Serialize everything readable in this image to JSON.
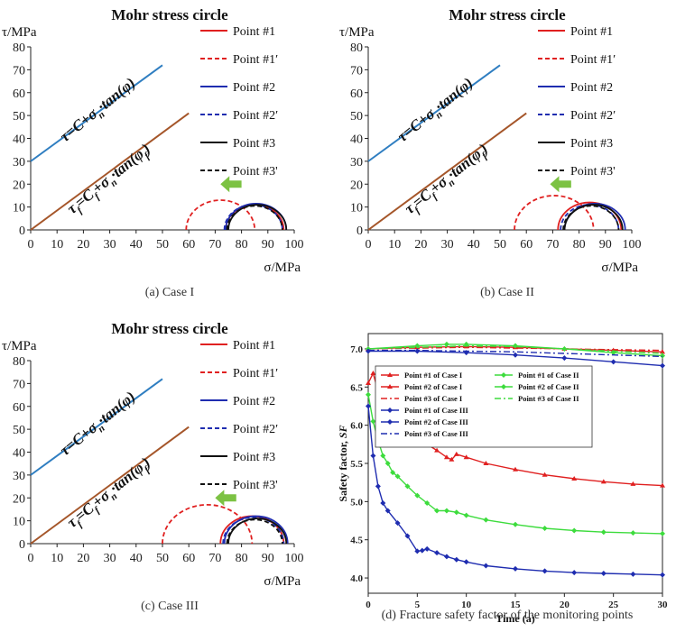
{
  "chart_data": [
    {
      "id": "a",
      "type": "line",
      "title": "Mohr stress circle",
      "caption": "(a) Case I",
      "xlabel": "σ/MPa",
      "ylabel": "τ/MPa",
      "xlim": [
        0,
        100
      ],
      "ylim": [
        0,
        80
      ],
      "xticks": [
        0,
        10,
        20,
        30,
        40,
        50,
        60,
        70,
        80,
        90,
        100
      ],
      "yticks": [
        0,
        10,
        20,
        30,
        40,
        50,
        60,
        70,
        80
      ],
      "lines": [
        {
          "name": "τ=C+σn·tan(φ)",
          "x": [
            0,
            50
          ],
          "y": [
            30,
            72
          ],
          "color": "#2f7ec1"
        },
        {
          "name": "τf=Cf+σn·tan(φf)",
          "x": [
            0,
            60
          ],
          "y": [
            0,
            51
          ],
          "color": "#a5562a"
        }
      ],
      "line_labels": [
        "τ=C+σ",
        "n",
        "·tan(φ)",
        "τ",
        "f",
        "=C",
        "f",
        "+σ",
        "n",
        "·tan(φ",
        "f",
        ")"
      ],
      "circles": [
        {
          "name": "Point #1",
          "center": 85,
          "radius": 11,
          "color": "#e02020",
          "dash": false
        },
        {
          "name": "Point #1′",
          "center": 72,
          "radius": 13,
          "color": "#e02020",
          "dash": true
        },
        {
          "name": "Point #2",
          "center": 85.5,
          "radius": 11.5,
          "color": "#1f2db0",
          "dash": false
        },
        {
          "name": "Point #2′",
          "center": 84.5,
          "radius": 11,
          "color": "#1f2db0",
          "dash": true
        },
        {
          "name": "Point #3",
          "center": 86,
          "radius": 11,
          "color": "#111111",
          "dash": false
        },
        {
          "name": "Point #3'",
          "center": 85,
          "radius": 10.5,
          "color": "#111111",
          "dash": true
        }
      ],
      "arrow": {
        "from": 80,
        "to": 72,
        "y": 20
      }
    },
    {
      "id": "b",
      "type": "line",
      "title": "Mohr stress circle",
      "caption": "(b) Case II",
      "xlabel": "σ/MPa",
      "ylabel": "τ/MPa",
      "xlim": [
        0,
        100
      ],
      "ylim": [
        0,
        80
      ],
      "xticks": [
        0,
        10,
        20,
        30,
        40,
        50,
        60,
        70,
        80,
        90,
        100
      ],
      "yticks": [
        0,
        10,
        20,
        30,
        40,
        50,
        60,
        70,
        80
      ],
      "lines": [
        {
          "name": "τ=C+σn·tan(φ)",
          "x": [
            0,
            50
          ],
          "y": [
            30,
            72
          ],
          "color": "#2f7ec1"
        },
        {
          "name": "τf=Cf+σn·tan(φf)",
          "x": [
            0,
            60
          ],
          "y": [
            0,
            51
          ],
          "color": "#a5562a"
        }
      ],
      "line_labels": [
        "τ=C+σ",
        "n",
        "·tan(φ)",
        "τ",
        "f",
        "=C",
        "f",
        "+σ",
        "n",
        "·tan(φ",
        "f",
        ")"
      ],
      "circles": [
        {
          "name": "Point #1",
          "center": 84,
          "radius": 12,
          "color": "#e02020",
          "dash": false
        },
        {
          "name": "Point #1′",
          "center": 70.5,
          "radius": 15,
          "color": "#e02020",
          "dash": true
        },
        {
          "name": "Point #2",
          "center": 86,
          "radius": 11.5,
          "color": "#1f2db0",
          "dash": false
        },
        {
          "name": "Point #2′",
          "center": 84,
          "radius": 11,
          "color": "#1f2db0",
          "dash": true
        },
        {
          "name": "Point #3",
          "center": 85.5,
          "radius": 11,
          "color": "#111111",
          "dash": false
        },
        {
          "name": "Point #3'",
          "center": 84.5,
          "radius": 10.5,
          "color": "#111111",
          "dash": true
        }
      ],
      "arrow": {
        "from": 77,
        "to": 69,
        "y": 20
      }
    },
    {
      "id": "c",
      "type": "line",
      "title": "Mohr stress circle",
      "caption": "(c) Case III",
      "xlabel": "σ/MPa",
      "ylabel": "τ/MPa",
      "xlim": [
        0,
        100
      ],
      "ylim": [
        0,
        80
      ],
      "xticks": [
        0,
        10,
        20,
        30,
        40,
        50,
        60,
        70,
        80,
        90,
        100
      ],
      "yticks": [
        0,
        10,
        20,
        30,
        40,
        50,
        60,
        70,
        80
      ],
      "lines": [
        {
          "name": "τ=C+σn·tan(φ)",
          "x": [
            0,
            50
          ],
          "y": [
            30,
            72
          ],
          "color": "#2f7ec1"
        },
        {
          "name": "τf=Cf+σn·tan(φf)",
          "x": [
            0,
            60
          ],
          "y": [
            0,
            51
          ],
          "color": "#a5562a"
        }
      ],
      "line_labels": [
        "τ=C+σ",
        "n",
        "·tan(φ)",
        "τ",
        "f",
        "=C",
        "f",
        "+σ",
        "n",
        "·tan(φ",
        "f",
        ")"
      ],
      "circles": [
        {
          "name": "Point #1",
          "center": 84,
          "radius": 12,
          "color": "#e02020",
          "dash": false
        },
        {
          "name": "Point #1′",
          "center": 67,
          "radius": 17,
          "color": "#e02020",
          "dash": true
        },
        {
          "name": "Point #2",
          "center": 85.5,
          "radius": 12,
          "color": "#1f2db0",
          "dash": false
        },
        {
          "name": "Point #2′",
          "center": 84.5,
          "radius": 11.5,
          "color": "#1f2db0",
          "dash": true
        },
        {
          "name": "Point #3",
          "center": 86,
          "radius": 11,
          "color": "#111111",
          "dash": false
        },
        {
          "name": "Point #3'",
          "center": 85,
          "radius": 10.5,
          "color": "#111111",
          "dash": true
        }
      ],
      "arrow": {
        "from": 78,
        "to": 70,
        "y": 20
      }
    },
    {
      "id": "d",
      "type": "line",
      "title": "",
      "caption": "(d) Fracture safety factor of the monitoring points",
      "xlabel": "Time (a)",
      "ylabel": "Safety factor, SF",
      "ylabel_parts": [
        "Safety factor, ",
        "SF"
      ],
      "xlim": [
        0,
        30
      ],
      "ylim": [
        3.8,
        7.2
      ],
      "xticks": [
        0,
        5,
        10,
        15,
        20,
        25,
        30
      ],
      "yticks": [
        4.0,
        4.5,
        5.0,
        5.5,
        6.0,
        6.5,
        7.0
      ],
      "series": [
        {
          "name": "Point #1 of Case I",
          "color": "#e02020",
          "marker": "triangle",
          "style": "solid",
          "x": [
            0,
            0.5,
            1,
            1.5,
            2,
            3,
            4,
            5,
            6,
            7,
            8,
            8.5,
            9,
            10,
            12,
            15,
            18,
            21,
            24,
            27,
            30
          ],
          "y": [
            6.55,
            6.68,
            6.45,
            6.25,
            6.18,
            6.05,
            5.95,
            5.85,
            5.75,
            5.67,
            5.58,
            5.55,
            5.62,
            5.58,
            5.5,
            5.42,
            5.35,
            5.3,
            5.26,
            5.23,
            5.21
          ]
        },
        {
          "name": "Point #2 of Case I",
          "color": "#e02020",
          "marker": "triangle",
          "style": "solid",
          "x": [
            0,
            5,
            10,
            15,
            20,
            25,
            30
          ],
          "y": [
            7.0,
            7.02,
            7.03,
            7.02,
            7.0,
            6.98,
            6.96
          ]
        },
        {
          "name": "Point #3 of Case I",
          "color": "#e02020",
          "marker": "none",
          "style": "dashdot",
          "x": [
            0,
            5,
            10,
            15,
            20,
            25,
            30
          ],
          "y": [
            7.0,
            7.01,
            7.02,
            7.01,
            7.0,
            6.99,
            6.98
          ]
        },
        {
          "name": "Point #1 of Case II",
          "color": "#3ddc3d",
          "marker": "diamond",
          "style": "solid",
          "x": [
            0,
            0.5,
            1,
            1.5,
            2,
            2.5,
            3,
            4,
            5,
            6,
            7,
            8,
            9,
            10,
            12,
            15,
            18,
            21,
            24,
            27,
            30
          ],
          "y": [
            6.4,
            6.05,
            5.8,
            5.6,
            5.5,
            5.38,
            5.33,
            5.2,
            5.08,
            4.98,
            4.88,
            4.88,
            4.86,
            4.82,
            4.76,
            4.7,
            4.65,
            4.62,
            4.6,
            4.59,
            4.58
          ]
        },
        {
          "name": "Point #2 of Case II",
          "color": "#3ddc3d",
          "marker": "diamond",
          "style": "solid",
          "x": [
            0,
            5,
            8,
            10,
            15,
            20,
            25,
            30
          ],
          "y": [
            7.0,
            7.04,
            7.06,
            7.06,
            7.04,
            7.0,
            6.95,
            6.91
          ]
        },
        {
          "name": "Point #3 of Case II",
          "color": "#3ddc3d",
          "marker": "none",
          "style": "dashdot",
          "x": [
            0,
            5,
            10,
            15,
            20,
            25,
            30
          ],
          "y": [
            7.0,
            7.02,
            7.04,
            7.03,
            7.0,
            6.97,
            6.94
          ]
        },
        {
          "name": "Point #1 of Case III",
          "color": "#1f2db0",
          "marker": "diamond",
          "style": "solid",
          "x": [
            0,
            0.5,
            1,
            1.5,
            2,
            3,
            4,
            5,
            5.5,
            6,
            7,
            8,
            9,
            10,
            12,
            15,
            18,
            21,
            24,
            27,
            30
          ],
          "y": [
            6.25,
            5.6,
            5.2,
            4.98,
            4.88,
            4.72,
            4.55,
            4.35,
            4.36,
            4.38,
            4.33,
            4.28,
            4.24,
            4.21,
            4.16,
            4.12,
            4.09,
            4.07,
            4.06,
            4.05,
            4.04
          ]
        },
        {
          "name": "Point #2 of Case III",
          "color": "#1f2db0",
          "marker": "diamond",
          "style": "solid",
          "x": [
            0,
            5,
            10,
            15,
            20,
            25,
            30
          ],
          "y": [
            6.97,
            6.97,
            6.95,
            6.92,
            6.88,
            6.83,
            6.78
          ]
        },
        {
          "name": "Point #3 of Case III",
          "color": "#1f2db0",
          "marker": "none",
          "style": "dashdot",
          "x": [
            0,
            5,
            10,
            15,
            20,
            25,
            30
          ],
          "y": [
            6.98,
            6.98,
            6.97,
            6.96,
            6.94,
            6.92,
            6.9
          ]
        }
      ]
    }
  ]
}
